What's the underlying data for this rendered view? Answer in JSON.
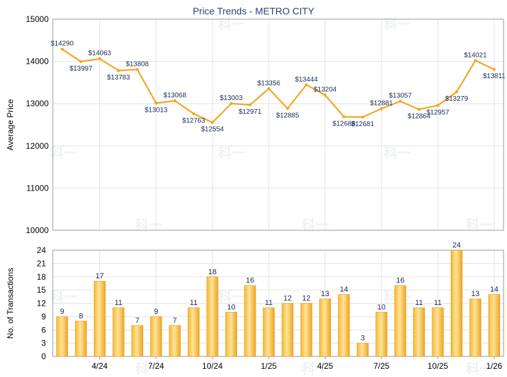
{
  "chart_data": [
    {
      "type": "line",
      "title": "Price Trends - METRO CITY",
      "ylabel": "Average Price",
      "ylim": [
        10000,
        15000
      ],
      "yticks": [
        10000,
        11000,
        12000,
        13000,
        14000,
        15000
      ],
      "color": "#f5a623",
      "series": [
        {
          "name": "Average Price",
          "values": [
            14290,
            13997,
            14063,
            13783,
            13808,
            13013,
            13068,
            12763,
            12554,
            13003,
            12971,
            13356,
            12885,
            13444,
            13204,
            12688,
            12681,
            12881,
            13057,
            12864,
            12957,
            13279,
            14021,
            13811
          ],
          "labels": [
            "$14290",
            "$13997",
            "$14063",
            "$13783",
            "$13808",
            "$13013",
            "$13068",
            "$12763",
            "$12554",
            "$13003",
            "$12971",
            "$13356",
            "$12885",
            "$13444",
            "$13204",
            "$12688",
            "$12681",
            "$12881",
            "$13057",
            "$12864",
            "$12957",
            "$13279",
            "$14021",
            "$13811"
          ]
        }
      ]
    },
    {
      "type": "bar",
      "ylabel": "No. of Transactions",
      "ylim": [
        0,
        24
      ],
      "yticks": [
        0,
        3,
        6,
        9,
        12,
        15,
        18,
        21,
        24
      ],
      "color": "#f5a623",
      "values": [
        9,
        8,
        17,
        11,
        7,
        9,
        7,
        11,
        18,
        10,
        16,
        11,
        12,
        12,
        13,
        14,
        3,
        10,
        16,
        11,
        11,
        24,
        13,
        14
      ],
      "xtick_labels": [
        {
          "label": "4/24",
          "index": 2
        },
        {
          "label": "7/24",
          "index": 5
        },
        {
          "label": "10/24",
          "index": 8
        },
        {
          "label": "1/25",
          "index": 11
        },
        {
          "label": "4/25",
          "index": 14
        },
        {
          "label": "7/25",
          "index": 17
        },
        {
          "label": "10/25",
          "index": 20
        },
        {
          "label": "1/26",
          "index": 23
        }
      ]
    }
  ]
}
